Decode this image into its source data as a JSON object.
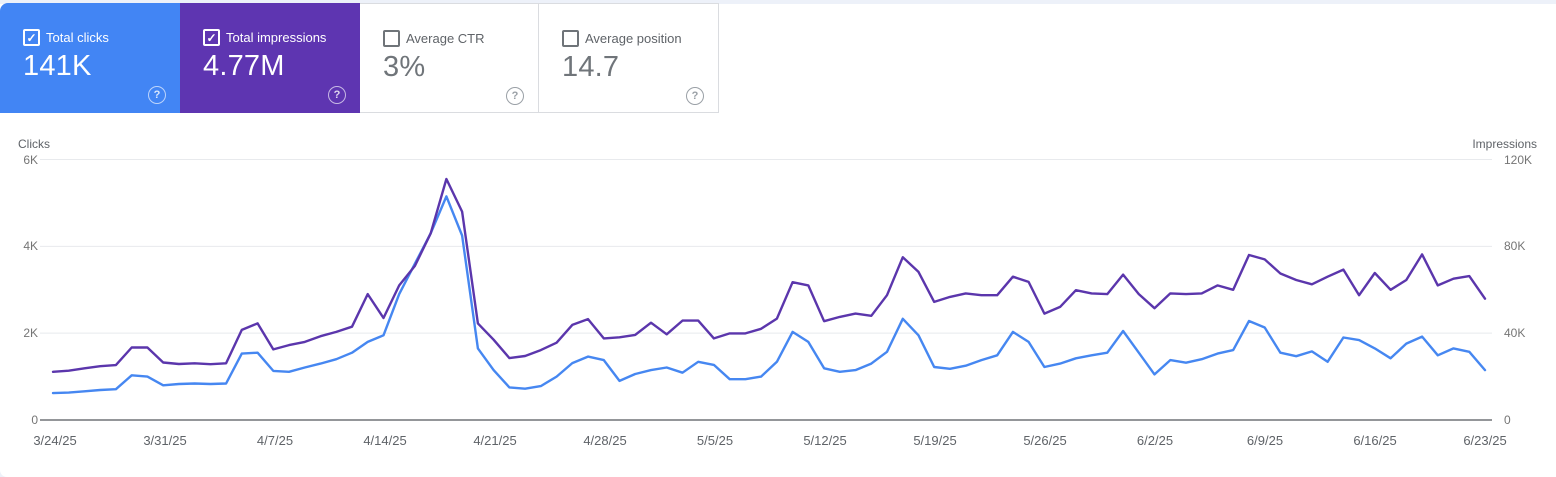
{
  "page_frame_color": "#edf1f9",
  "icons": {
    "checkbox_checked": "✓",
    "help": "?"
  },
  "metric_cards": [
    {
      "label": "Total clicks",
      "value": "141K",
      "selected": true,
      "bg_color": "#4285f4"
    },
    {
      "label": "Total impressions",
      "value": "4.77M",
      "selected": true,
      "bg_color": "#5e35b1"
    },
    {
      "label": "Average CTR",
      "value": "3%",
      "selected": false
    },
    {
      "label": "Average position",
      "value": "14.7",
      "selected": false
    }
  ],
  "chart_data": {
    "type": "line",
    "grid": "horizontal",
    "legend_position": "none",
    "left_axis": {
      "label": "Clicks",
      "ticks": [
        "0",
        "2K",
        "4K",
        "6K"
      ],
      "max": 6000
    },
    "right_axis": {
      "label": "Impressions",
      "ticks": [
        "0",
        "40K",
        "80K",
        "120K"
      ],
      "max": 120000
    },
    "x_tick_labels": [
      "3/24/25",
      "3/31/25",
      "4/7/25",
      "4/14/25",
      "4/21/25",
      "4/28/25",
      "5/5/25",
      "5/12/25",
      "5/19/25",
      "5/26/25",
      "6/2/25",
      "6/9/25",
      "6/16/25",
      "6/23/25"
    ],
    "dates": [
      "3/24",
      "3/25",
      "3/26",
      "3/27",
      "3/28",
      "3/29",
      "3/30",
      "3/31",
      "4/1",
      "4/2",
      "4/3",
      "4/4",
      "4/5",
      "4/6",
      "4/7",
      "4/8",
      "4/9",
      "4/10",
      "4/11",
      "4/12",
      "4/13",
      "4/14",
      "4/15",
      "4/16",
      "4/17",
      "4/18",
      "4/19",
      "4/20",
      "4/21",
      "4/22",
      "4/23",
      "4/24",
      "4/25",
      "4/26",
      "4/27",
      "4/28",
      "4/29",
      "4/30",
      "5/1",
      "5/2",
      "5/3",
      "5/4",
      "5/5",
      "5/6",
      "5/7",
      "5/8",
      "5/9",
      "5/10",
      "5/11",
      "5/12",
      "5/13",
      "5/14",
      "5/15",
      "5/16",
      "5/17",
      "5/18",
      "5/19",
      "5/20",
      "5/21",
      "5/22",
      "5/23",
      "5/24",
      "5/25",
      "5/26",
      "5/27",
      "5/28",
      "5/29",
      "5/30",
      "5/31",
      "6/1",
      "6/2",
      "6/3",
      "6/4",
      "6/5",
      "6/6",
      "6/7",
      "6/8",
      "6/9",
      "6/10",
      "6/11",
      "6/12",
      "6/13",
      "6/14",
      "6/15",
      "6/16",
      "6/17",
      "6/18",
      "6/19",
      "6/20",
      "6/21",
      "6/22",
      "6/23"
    ],
    "series": [
      {
        "name": "Clicks",
        "axis": "left",
        "color": "#4687f1",
        "values": [
          620,
          630,
          660,
          690,
          710,
          1030,
          1000,
          800,
          830,
          840,
          830,
          840,
          1530,
          1550,
          1130,
          1110,
          1210,
          1300,
          1400,
          1550,
          1800,
          1950,
          2900,
          3600,
          4300,
          5150,
          4250,
          1650,
          1150,
          750,
          720,
          780,
          1000,
          1310,
          1460,
          1380,
          900,
          1060,
          1150,
          1210,
          1090,
          1340,
          1270,
          940,
          940,
          1000,
          1340,
          2030,
          1800,
          1190,
          1110,
          1150,
          1300,
          1570,
          2330,
          1950,
          1220,
          1180,
          1250,
          1380,
          1490,
          2030,
          1800,
          1220,
          1300,
          1420,
          1490,
          1550,
          2050,
          1550,
          1050,
          1380,
          1320,
          1400,
          1530,
          1610,
          2280,
          2130,
          1550,
          1470,
          1580,
          1340,
          1900,
          1840,
          1650,
          1420,
          1760,
          1920,
          1490,
          1650,
          1570,
          1150
        ]
      },
      {
        "name": "Impressions",
        "axis": "right",
        "color": "#5b36ac",
        "values": [
          22200,
          22700,
          23800,
          24800,
          25300,
          33400,
          33400,
          26500,
          25800,
          26100,
          25700,
          26100,
          41500,
          44500,
          32500,
          34500,
          36000,
          38600,
          40600,
          43000,
          58000,
          47000,
          62000,
          71000,
          86000,
          111000,
          96000,
          44500,
          37000,
          28500,
          29500,
          32200,
          35600,
          43800,
          46500,
          37600,
          38100,
          39200,
          44800,
          39500,
          45800,
          45800,
          37600,
          39900,
          39900,
          42000,
          46700,
          63500,
          62000,
          45500,
          47500,
          49000,
          48000,
          57500,
          75000,
          68200,
          54400,
          56700,
          58300,
          57500,
          57500,
          66000,
          63600,
          49000,
          52100,
          59800,
          58300,
          58000,
          67000,
          58000,
          51500,
          58300,
          58000,
          58300,
          62000,
          60000,
          76000,
          74000,
          67500,
          64500,
          62500,
          66000,
          69300,
          57500,
          67700,
          60000,
          64500,
          76300,
          62000,
          65100,
          66300,
          55900
        ]
      }
    ]
  }
}
